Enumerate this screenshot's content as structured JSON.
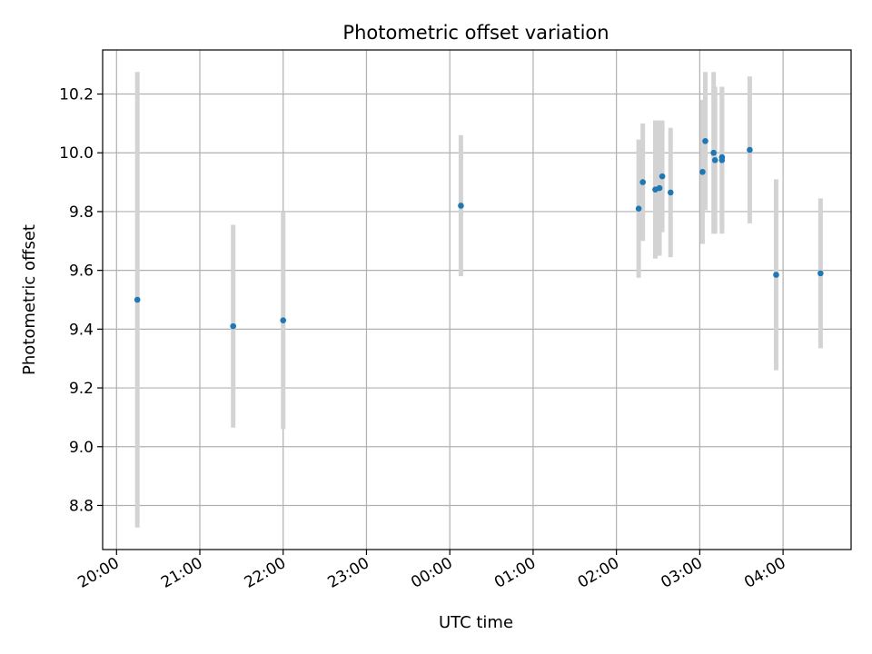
{
  "chart_data": {
    "type": "scatter",
    "title": "Photometric offset variation",
    "xlabel": "UTC time",
    "ylabel": "Photometric offset",
    "x_ticks": [
      "20:00",
      "21:00",
      "22:00",
      "23:00",
      "00:00",
      "01:00",
      "02:00",
      "03:00",
      "04:00"
    ],
    "y_ticks": [
      "8.8",
      "9.0",
      "9.2",
      "9.4",
      "9.6",
      "9.8",
      "10.0",
      "10.2"
    ],
    "xlim": [
      "19:50",
      "04:49"
    ],
    "ylim": [
      8.65,
      10.35
    ],
    "grid": true,
    "legend": "none",
    "colors": {
      "point": "#1f77b4",
      "errorbar": "#d3d3d3",
      "grid": "#b0b0b0"
    },
    "points": [
      {
        "time": "20:15",
        "y": 9.5,
        "err": 0.775
      },
      {
        "time": "21:24",
        "y": 9.41,
        "err": 0.345
      },
      {
        "time": "22:00",
        "y": 9.43,
        "err": 0.37
      },
      {
        "time": "00:08",
        "y": 9.82,
        "err": 0.24
      },
      {
        "time": "02:16",
        "y": 9.81,
        "err": 0.235
      },
      {
        "time": "02:19",
        "y": 9.9,
        "err": 0.2
      },
      {
        "time": "02:28",
        "y": 9.875,
        "err": 0.235
      },
      {
        "time": "02:31",
        "y": 9.88,
        "err": 0.23
      },
      {
        "time": "02:33",
        "y": 9.92,
        "err": 0.19
      },
      {
        "time": "02:39",
        "y": 9.865,
        "err": 0.22
      },
      {
        "time": "03:02",
        "y": 9.935,
        "err": 0.245
      },
      {
        "time": "03:04",
        "y": 10.04,
        "err": 0.235
      },
      {
        "time": "03:10",
        "y": 10.0,
        "err": 0.275
      },
      {
        "time": "03:11",
        "y": 9.975,
        "err": 0.25
      },
      {
        "time": "03:16",
        "y": 9.985,
        "err": 0.24
      },
      {
        "time": "03:16",
        "y": 9.975,
        "err": 0.25
      },
      {
        "time": "03:36",
        "y": 10.01,
        "err": 0.25
      },
      {
        "time": "03:55",
        "y": 9.585,
        "err": 0.325
      },
      {
        "time": "04:27",
        "y": 9.59,
        "err": 0.255
      }
    ]
  }
}
